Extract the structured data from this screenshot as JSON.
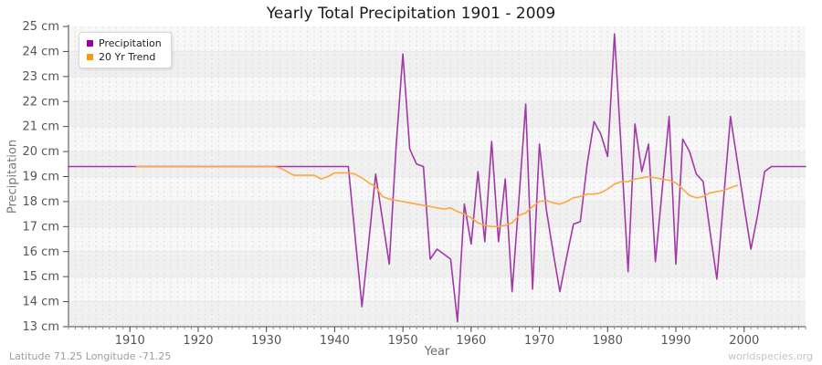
{
  "header": {
    "title": "Yearly Total Precipitation 1901 - 2009"
  },
  "legend": {
    "items": [
      {
        "label": "Precipitation",
        "marker_color": "#990099"
      },
      {
        "label": "20 Yr Trend",
        "marker_color": "#FF9900"
      }
    ]
  },
  "axes": {
    "y_label": "Precipitation",
    "x_label": "Year"
  },
  "footer": {
    "left": "Latitude 71.25 Longitude -71.25",
    "right": "worldspecies.org"
  },
  "chart_data": {
    "type": "line",
    "title": "Yearly Total Precipitation 1901 - 2009",
    "xlabel": "Year",
    "ylabel": "Precipitation",
    "x_range": [
      1901,
      2009
    ],
    "ylim": [
      13,
      25
    ],
    "grid": true,
    "legend_position": "top-left",
    "y_ticks": [
      {
        "v": 25,
        "label": "25 cm"
      },
      {
        "v": 24,
        "label": "24 cm"
      },
      {
        "v": 23,
        "label": "23 cm"
      },
      {
        "v": 22,
        "label": "22 cm"
      },
      {
        "v": 21,
        "label": "21 cm"
      },
      {
        "v": 20,
        "label": "20 cm"
      },
      {
        "v": 19,
        "label": "19 cm"
      },
      {
        "v": 18,
        "label": "18 cm"
      },
      {
        "v": 17,
        "label": "17 cm"
      },
      {
        "v": 16,
        "label": "16 cm"
      },
      {
        "v": 15,
        "label": "15 cm"
      },
      {
        "v": 14,
        "label": "14 cm"
      },
      {
        "v": 13,
        "label": "13 cm"
      }
    ],
    "x_ticks": [
      {
        "v": 1910,
        "label": "1910"
      },
      {
        "v": 1920,
        "label": "1920"
      },
      {
        "v": 1930,
        "label": "1930"
      },
      {
        "v": 1940,
        "label": "1940"
      },
      {
        "v": 1950,
        "label": "1950"
      },
      {
        "v": 1960,
        "label": "1960"
      },
      {
        "v": 1970,
        "label": "1970"
      },
      {
        "v": 1980,
        "label": "1980"
      },
      {
        "v": 1990,
        "label": "1990"
      },
      {
        "v": 2000,
        "label": "2000"
      }
    ],
    "series": [
      {
        "name": "Precipitation",
        "color": "#A238A8",
        "x_start": 1901,
        "values": [
          19.4,
          19.4,
          19.4,
          19.4,
          19.4,
          19.4,
          19.4,
          19.4,
          19.4,
          19.4,
          19.4,
          19.4,
          19.4,
          19.4,
          19.4,
          19.4,
          19.4,
          19.4,
          19.4,
          19.4,
          19.4,
          19.4,
          19.4,
          19.4,
          19.4,
          19.4,
          19.4,
          19.4,
          19.4,
          19.4,
          19.4,
          19.4,
          19.4,
          19.4,
          19.4,
          19.4,
          19.4,
          19.4,
          19.4,
          19.4,
          19.4,
          19.4,
          16.6,
          13.8,
          16.4,
          19.1,
          17.3,
          15.5,
          20.2,
          23.9,
          20.1,
          19.5,
          19.4,
          15.7,
          16.1,
          15.9,
          15.7,
          13.2,
          17.9,
          16.3,
          19.2,
          16.4,
          20.4,
          16.4,
          18.9,
          14.4,
          18.1,
          21.9,
          14.5,
          20.3,
          17.7,
          16.0,
          14.4,
          15.8,
          17.1,
          17.2,
          19.5,
          21.2,
          20.7,
          19.8,
          24.7,
          20.0,
          15.2,
          21.1,
          19.2,
          20.3,
          15.6,
          18.5,
          21.4,
          15.5,
          20.5,
          20.0,
          19.1,
          18.8,
          16.8,
          14.9,
          18.1,
          21.4,
          19.6,
          17.8,
          16.1,
          17.5,
          19.2,
          19.4,
          19.4,
          19.4,
          19.4,
          19.4,
          19.4
        ]
      },
      {
        "name": "20 Yr Trend",
        "color": "#FFA640",
        "x_start": 1911,
        "values": [
          19.4,
          19.4,
          19.4,
          19.4,
          19.4,
          19.4,
          19.4,
          19.4,
          19.4,
          19.4,
          19.4,
          19.4,
          19.4,
          19.4,
          19.4,
          19.4,
          19.4,
          19.4,
          19.4,
          19.4,
          19.4,
          19.35,
          19.2,
          19.05,
          19.05,
          19.05,
          19.05,
          18.9,
          19.0,
          19.15,
          19.15,
          19.15,
          19.1,
          18.95,
          18.75,
          18.6,
          18.2,
          18.1,
          18.05,
          18.0,
          17.95,
          17.9,
          17.85,
          17.8,
          17.75,
          17.7,
          17.75,
          17.6,
          17.5,
          17.35,
          17.15,
          17.05,
          17.0,
          17.0,
          17.05,
          17.15,
          17.45,
          17.55,
          17.8,
          18.0,
          18.05,
          17.95,
          17.9,
          18.0,
          18.15,
          18.2,
          18.3,
          18.3,
          18.35,
          18.5,
          18.7,
          18.8,
          18.8,
          18.9,
          18.95,
          19.0,
          18.95,
          18.9,
          18.85,
          18.75,
          18.5,
          18.25,
          18.15,
          18.2,
          18.35,
          18.4,
          18.45,
          18.55,
          18.65
        ]
      }
    ],
    "styles": {
      "plot_bg_even": "#f7f7f7",
      "plot_bg_odd": "#f0f0f0",
      "grid_v": "#dedede",
      "grid_h": "#e7e7e7",
      "axis": "#4a4a4a",
      "tick_label": "#555555",
      "minor_tick": "#8a8a8a"
    }
  }
}
